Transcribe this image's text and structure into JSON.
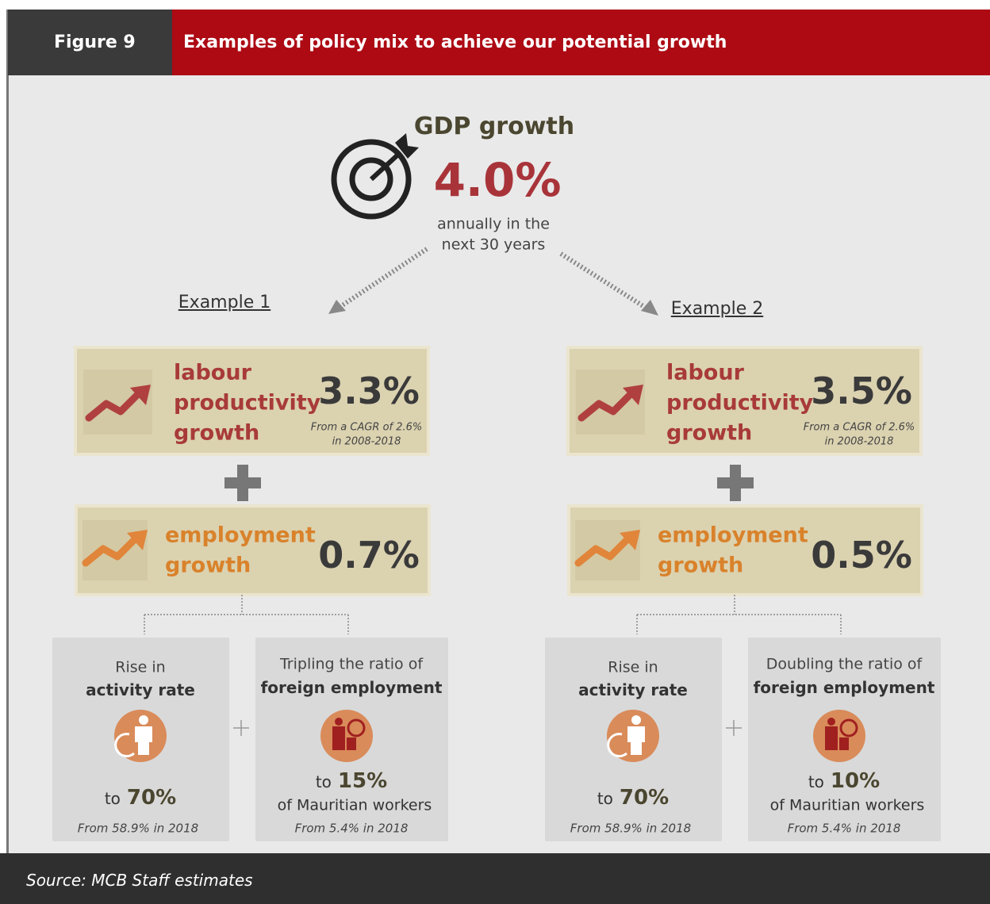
{
  "header": {
    "figure": "Figure 9",
    "title": "Examples of policy mix to achieve our potential growth"
  },
  "target": {
    "label": "GDP growth",
    "value": "4.0%",
    "note_lines": [
      "annually in the",
      "next 30 years"
    ]
  },
  "examples": [
    {
      "title": "Example 1",
      "productivity": {
        "label_lines": [
          "labour",
          "productivity",
          "growth"
        ],
        "value": "3.3%",
        "note_lines": [
          "From a CAGR of 2.6%",
          "in 2008-2018"
        ]
      },
      "employment": {
        "label_lines": [
          "employment",
          "growth"
        ],
        "value": "0.7%"
      },
      "drivers": [
        {
          "intro": "Rise in",
          "label": "activity rate",
          "prefix": "to",
          "value": "70%",
          "note": "From 58.9% in 2018"
        },
        {
          "intro": "Tripling the ratio of",
          "label": "foreign employment",
          "prefix": "to",
          "value": "15%",
          "suffix": "of Mauritian workers",
          "note": "From 5.4% in 2018"
        }
      ]
    },
    {
      "title": "Example 2",
      "productivity": {
        "label_lines": [
          "labour",
          "productivity",
          "growth"
        ],
        "value": "3.5%",
        "note_lines": [
          "From a CAGR of 2.6%",
          "in 2008-2018"
        ]
      },
      "employment": {
        "label_lines": [
          "employment",
          "growth"
        ],
        "value": "0.5%"
      },
      "drivers": [
        {
          "intro": "Rise in",
          "label": "activity rate",
          "prefix": "to",
          "value": "70%",
          "note": "From 58.9% in 2018"
        },
        {
          "intro": "Doubling the ratio of",
          "label": "foreign employment",
          "prefix": "to",
          "value": "10%",
          "suffix": "of Mauritian workers",
          "note": "From 5.4% in 2018"
        }
      ]
    }
  ],
  "footer": {
    "source": "Source: MCB Staff estimates"
  }
}
